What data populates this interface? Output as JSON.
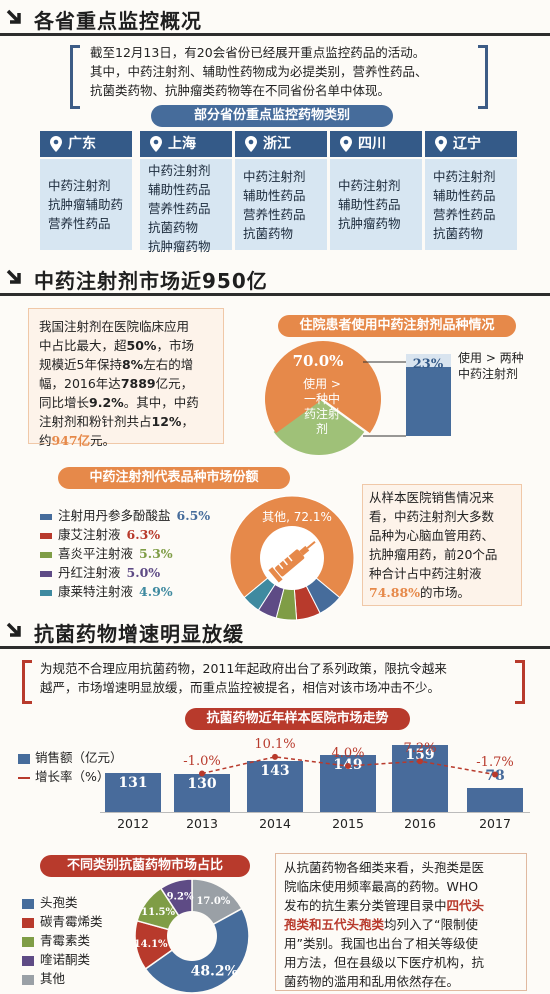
{
  "sections": {
    "s1_title": "各省重点监控概况",
    "s2_title": "中药注射剂市场近950亿",
    "s3_title": "抗菌药物增速明显放缓"
  },
  "intro": {
    "line1": "截至12月13日，有20会省份已经展开重点监控药品的活动。",
    "line2": "其中，中药注射剂、辅助性药物成为必提类别，营养性药品、",
    "line3": "抗菌类药物、抗肿瘤类药物等在不同省份名单中体现。"
  },
  "provinces_title": "部分省份重点监控药物类别",
  "provinces": [
    {
      "name": "广东",
      "items": [
        "中药注射剂",
        "抗肿瘤辅助药",
        "营养性药品"
      ]
    },
    {
      "name": "上海",
      "items": [
        "中药注射剂",
        "辅助性药品",
        "营养性药品",
        "抗菌药物",
        "抗肿瘤药物"
      ]
    },
    {
      "name": "浙江",
      "items": [
        "中药注射剂",
        "辅助性药品",
        "营养性药品",
        "抗菌药物"
      ]
    },
    {
      "name": "四川",
      "items": [
        "中药注射剂",
        "辅助性药品",
        "抗肿瘤药物"
      ]
    },
    {
      "name": "辽宁",
      "items": [
        "中药注射剂",
        "辅助性药品",
        "营养性药品",
        "抗菌药物"
      ]
    }
  ],
  "tcm_text": {
    "l1": "我国注射剂在医院临床应用",
    "l2a": "中占比最大，超",
    "l2b": "50%",
    "l2c": "，市场",
    "l3a": "规模近5年保持",
    "l3b": "8%",
    "l3c": "左右的增",
    "l4a": "幅，2016年达",
    "l4b": "7889",
    "l4c": "亿元，",
    "l5a": "同比增长",
    "l5b": "9.2%",
    "l5c": "。其中，中药",
    "l6a": "注射剂和粉针剂共占",
    "l6b": "12%",
    "l6c": "，",
    "l7a": "约",
    "l7b": "947亿",
    "l7c": "元。"
  },
  "inpatient": {
    "title": "住院患者使用中药注射剂品种情况",
    "big_pct": "70.0%",
    "big_label": [
      "使用 >",
      "一种中",
      "药注射",
      "剂"
    ],
    "small_pct": "23%",
    "small_label": [
      "使用 > 两种",
      "中药注射剂"
    ]
  },
  "rep_title": "中药注射剂代表品种市场份额",
  "rep_note": {
    "l1": "从样本医院销售情况来",
    "l2": "看，中药注射剂大多数",
    "l3": "品种为心脑血管用药、",
    "l4": "抗肿瘤用药，前20个品",
    "l5": "种合计占中药注射液",
    "l6a": "74.88%",
    "l6b": "的市场。"
  },
  "antibio_intro": {
    "l1": "为规范不合理应用抗菌药物，2011年起政府出台了系列政策，限抗令越来",
    "l2": "越严，市场增速明显放缓，而重点监控被提名，相信对该市场冲击不少。"
  },
  "trend_title": "抗菌药物近年样本医院市场走势",
  "trend_legend": {
    "sales": "销售额（亿元）",
    "growth": "增长率（%）"
  },
  "category_title": "不同类别抗菌药物市场占比",
  "antibio_note": {
    "l1": "从抗菌药物各细类来看，头孢类是医",
    "l2": "院临床使用频率最高的药物。WHO",
    "l3a": "发布的抗生素分类管理目录中",
    "l3b": "四代头",
    "l4a": "孢类和五代头孢类",
    "l4b": "均列入了“限制使",
    "l5": "用”类别。我国也出台了相关等级使",
    "l6": "用方法，但在县级以下医疗机构，抗",
    "l7": "菌药物的滥用和乱用依然存在。"
  },
  "colors": {
    "blue": "#466c9b",
    "red": "#b83a2c",
    "green": "#7f9d46",
    "purple": "#5e4b85",
    "teal": "#3f8aa0",
    "orange": "#e6894a",
    "gray": "#9aa0a6",
    "lightgreen": "#9fc178"
  },
  "chart_data": [
    {
      "type": "pie",
      "title": "住院患者使用中药注射剂品种情况",
      "labels": [
        "使用 > 一种中药注射剂",
        "使用 > 两种中药注射剂"
      ],
      "values": [
        70.0,
        23
      ]
    },
    {
      "type": "pie",
      "title": "中药注射剂代表品种市场份额",
      "labels": [
        "注射用丹参多酚酸盐",
        "康艾注射液",
        "喜炎平注射液",
        "丹红注射液",
        "康莱特注射液",
        "其他"
      ],
      "values": [
        6.5,
        6.3,
        5.3,
        5.0,
        4.9,
        72.1
      ],
      "display": [
        "6.5%",
        "6.3%",
        "5.3%",
        "5.0%",
        "4.9%",
        "72.1%"
      ],
      "other_label": "其他, 72.1%"
    },
    {
      "type": "bar",
      "title": "抗菌药物近年样本医院市场走势",
      "categories": [
        "2012",
        "2013",
        "2014",
        "2015",
        "2016",
        "2017"
      ],
      "series": [
        {
          "name": "销售额（亿元）",
          "values": [
            131,
            130,
            143,
            149,
            159,
            78
          ]
        },
        {
          "name": "增长率（%）",
          "values": [
            null,
            -1.0,
            10.1,
            4.0,
            7.2,
            -1.7
          ],
          "display": [
            "",
            "-1.0%",
            "10.1%",
            "4.0%",
            "7.2%",
            "-1.7%"
          ]
        }
      ],
      "ylim": [
        0,
        170
      ]
    },
    {
      "type": "pie",
      "title": "不同类别抗菌药物市场占比",
      "labels": [
        "头孢类",
        "碳青霉烯类",
        "青霉素类",
        "喹诺酮类",
        "其他"
      ],
      "values": [
        48.2,
        14.1,
        11.5,
        9.2,
        17.0
      ],
      "display": [
        "48.2%",
        "14.1%",
        "11.5%",
        "9.2%",
        "17.0%"
      ]
    }
  ]
}
